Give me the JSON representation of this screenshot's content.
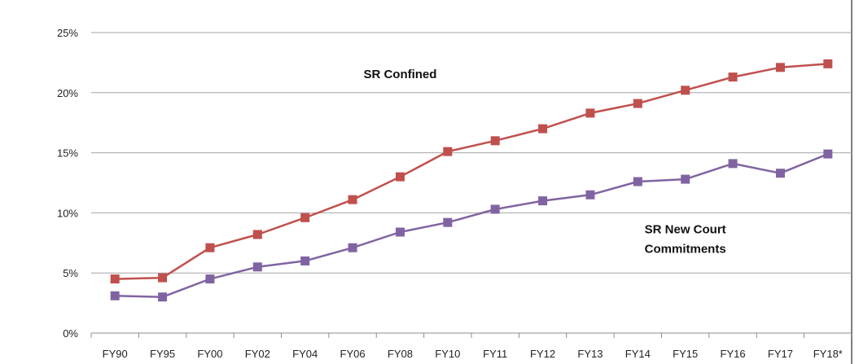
{
  "chart_data": {
    "type": "line",
    "categories": [
      "FY90",
      "FY95",
      "FY00",
      "FY02",
      "FY04",
      "FY06",
      "FY08",
      "FY10",
      "FY11",
      "FY12",
      "FY13",
      "FY14",
      "FY15",
      "FY16",
      "FY17",
      "FY18*"
    ],
    "series": [
      {
        "name": "SR Confined",
        "color": "#c0504d",
        "values": [
          4.5,
          4.6,
          7.1,
          8.2,
          9.6,
          11.1,
          13.0,
          15.1,
          16.0,
          17.0,
          18.3,
          19.1,
          20.2,
          21.3,
          22.1,
          22.4
        ]
      },
      {
        "name": "SR New Court Commitments",
        "color": "#8064a2",
        "values": [
          3.1,
          3.0,
          4.5,
          5.5,
          6.0,
          7.1,
          8.4,
          9.2,
          10.3,
          11.0,
          11.5,
          12.6,
          12.8,
          14.1,
          13.3,
          14.9
        ]
      }
    ],
    "ylim": [
      0,
      25
    ],
    "yticks": [
      0,
      5,
      10,
      15,
      20,
      25
    ],
    "ytick_labels": [
      "0%",
      "5%",
      "10%",
      "15%",
      "20%",
      "25%"
    ],
    "grid": true,
    "legend": "inline-labels",
    "annotations": [
      {
        "text_lines": [
          "SR Confined"
        ],
        "x_category": "FY08",
        "y_value": 21.2
      },
      {
        "text_lines": [
          "SR New Court",
          "Commitments"
        ],
        "x_category": "FY15",
        "y_value": 8.3
      }
    ]
  }
}
